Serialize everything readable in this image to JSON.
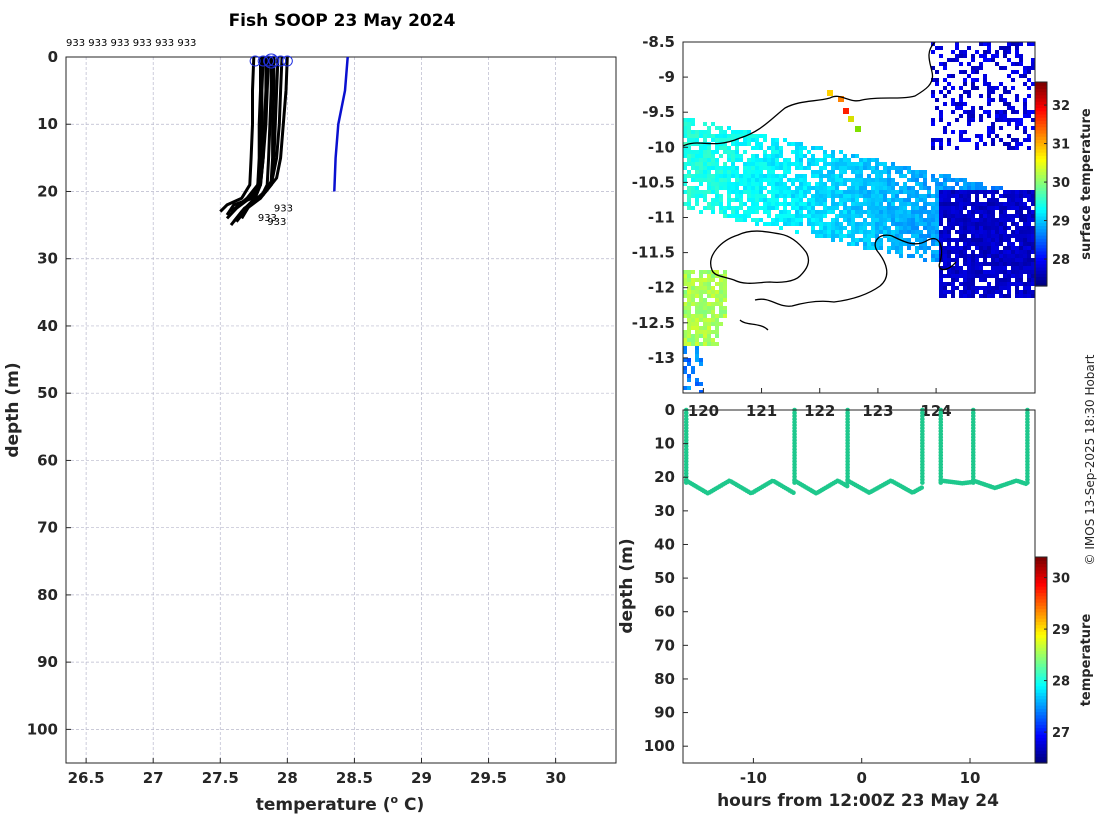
{
  "chart_data": [
    {
      "type": "line",
      "title": "Fish SOOP 23 May 2024",
      "xlabel": "temperature (",
      "xlabel_sup": "o",
      "xlabel_end": " C)",
      "ylabel": "depth (m)",
      "xlim": [
        26.35,
        30.45
      ],
      "ylim": [
        105,
        0
      ],
      "xticks": [
        "26.5",
        "27",
        "27.5",
        "28",
        "28.5",
        "29",
        "29.5",
        "30"
      ],
      "yticks": [
        "0",
        "10",
        "20",
        "30",
        "40",
        "50",
        "60",
        "70",
        "80",
        "90",
        "100"
      ],
      "top_label": "933 933 933 933 933 933",
      "profile_label": "933",
      "profiles": [
        {
          "t": [
            27.8,
            27.8,
            27.79,
            27.79,
            27.78,
            27.74,
            27.6,
            27.55
          ],
          "d": [
            0,
            5,
            10,
            15,
            19,
            21,
            22,
            23.5
          ]
        },
        {
          "t": [
            27.82,
            27.81,
            27.81,
            27.8,
            27.78,
            27.7,
            27.58
          ],
          "d": [
            0,
            5,
            10,
            15,
            19,
            21,
            23
          ]
        },
        {
          "t": [
            27.86,
            27.85,
            27.84,
            27.82,
            27.8,
            27.72,
            27.62,
            27.55
          ],
          "d": [
            0,
            5,
            10,
            15,
            19,
            21,
            22.5,
            24
          ]
        },
        {
          "t": [
            27.88,
            27.88,
            27.87,
            27.86,
            27.85,
            27.8,
            27.7,
            27.62
          ],
          "d": [
            0,
            5,
            10,
            15,
            19,
            21,
            22.5,
            24.5
          ]
        },
        {
          "t": [
            27.9,
            27.9,
            27.89,
            27.89,
            27.88,
            27.82,
            27.72,
            27.66
          ],
          "d": [
            0,
            5,
            10,
            15,
            18.5,
            20.5,
            22,
            24
          ]
        },
        {
          "t": [
            27.93,
            27.92,
            27.91,
            27.9,
            27.88,
            27.8,
            27.68,
            27.6
          ],
          "d": [
            0,
            5,
            10,
            15,
            19,
            21,
            22.5,
            24.5
          ]
        },
        {
          "t": [
            27.96,
            27.95,
            27.94,
            27.92,
            27.88,
            27.78,
            27.66
          ],
          "d": [
            0,
            5,
            10,
            15,
            19,
            21,
            23
          ]
        },
        {
          "t": [
            28.0,
            27.99,
            27.97,
            27.95,
            27.92,
            27.84,
            27.74,
            27.68
          ],
          "d": [
            0,
            5,
            10,
            15,
            18,
            20,
            21.5,
            23
          ]
        },
        {
          "t": [
            27.75,
            27.74,
            27.74,
            27.73,
            27.72,
            27.66,
            27.55,
            27.5
          ],
          "d": [
            0,
            5,
            10,
            15,
            19,
            21,
            22,
            23
          ]
        },
        {
          "t": [
            27.84,
            27.84,
            27.83,
            27.82,
            27.8,
            27.76,
            27.66,
            27.58
          ],
          "d": [
            0,
            5,
            10,
            15,
            19,
            21,
            23,
            25
          ]
        }
      ],
      "reference": {
        "t": [
          28.45,
          28.43,
          28.38,
          28.36,
          28.35
        ],
        "d": [
          0,
          5,
          10,
          15,
          20
        ]
      },
      "markers_t": [
        27.76,
        27.82,
        27.86,
        27.88,
        27.9,
        27.95,
        28.0
      ]
    },
    {
      "type": "heatmap",
      "xlabel": "",
      "ylabel": "",
      "xlim": [
        119.65,
        125.7
      ],
      "ylim": [
        -13.5,
        -8.5
      ],
      "xticks": [
        "120",
        "121",
        "122",
        "123",
        "124"
      ],
      "yticks": [
        "-8.5",
        "-9",
        "-9.5",
        "-10",
        "-10.5",
        "-11",
        "-11.5",
        "-12",
        "-12.5",
        "-13"
      ],
      "colorbar_label": "surface temperature",
      "colorbar_ticks": [
        "32",
        "31",
        "30",
        "29",
        "28"
      ],
      "colorbar_range": [
        27.3,
        32.6
      ]
    },
    {
      "type": "scatter",
      "xlabel": "hours from 12:00Z 23 May 24",
      "ylabel": "depth (m)",
      "xlim": [
        -16.5,
        16
      ],
      "ylim": [
        105,
        0
      ],
      "xticks": [
        "-10",
        "0",
        "10"
      ],
      "yticks": [
        "0",
        "10",
        "20",
        "30",
        "40",
        "50",
        "60",
        "70",
        "80",
        "90",
        "100"
      ],
      "colorbar_label": "temperature",
      "colorbar_ticks": [
        "30",
        "29",
        "28",
        "27"
      ],
      "colorbar_range": [
        26.4,
        30.4
      ],
      "point_color": "#1ec88c"
    }
  ],
  "credit": "© IMOS 13-Sep-2025 18:30 Hobart"
}
